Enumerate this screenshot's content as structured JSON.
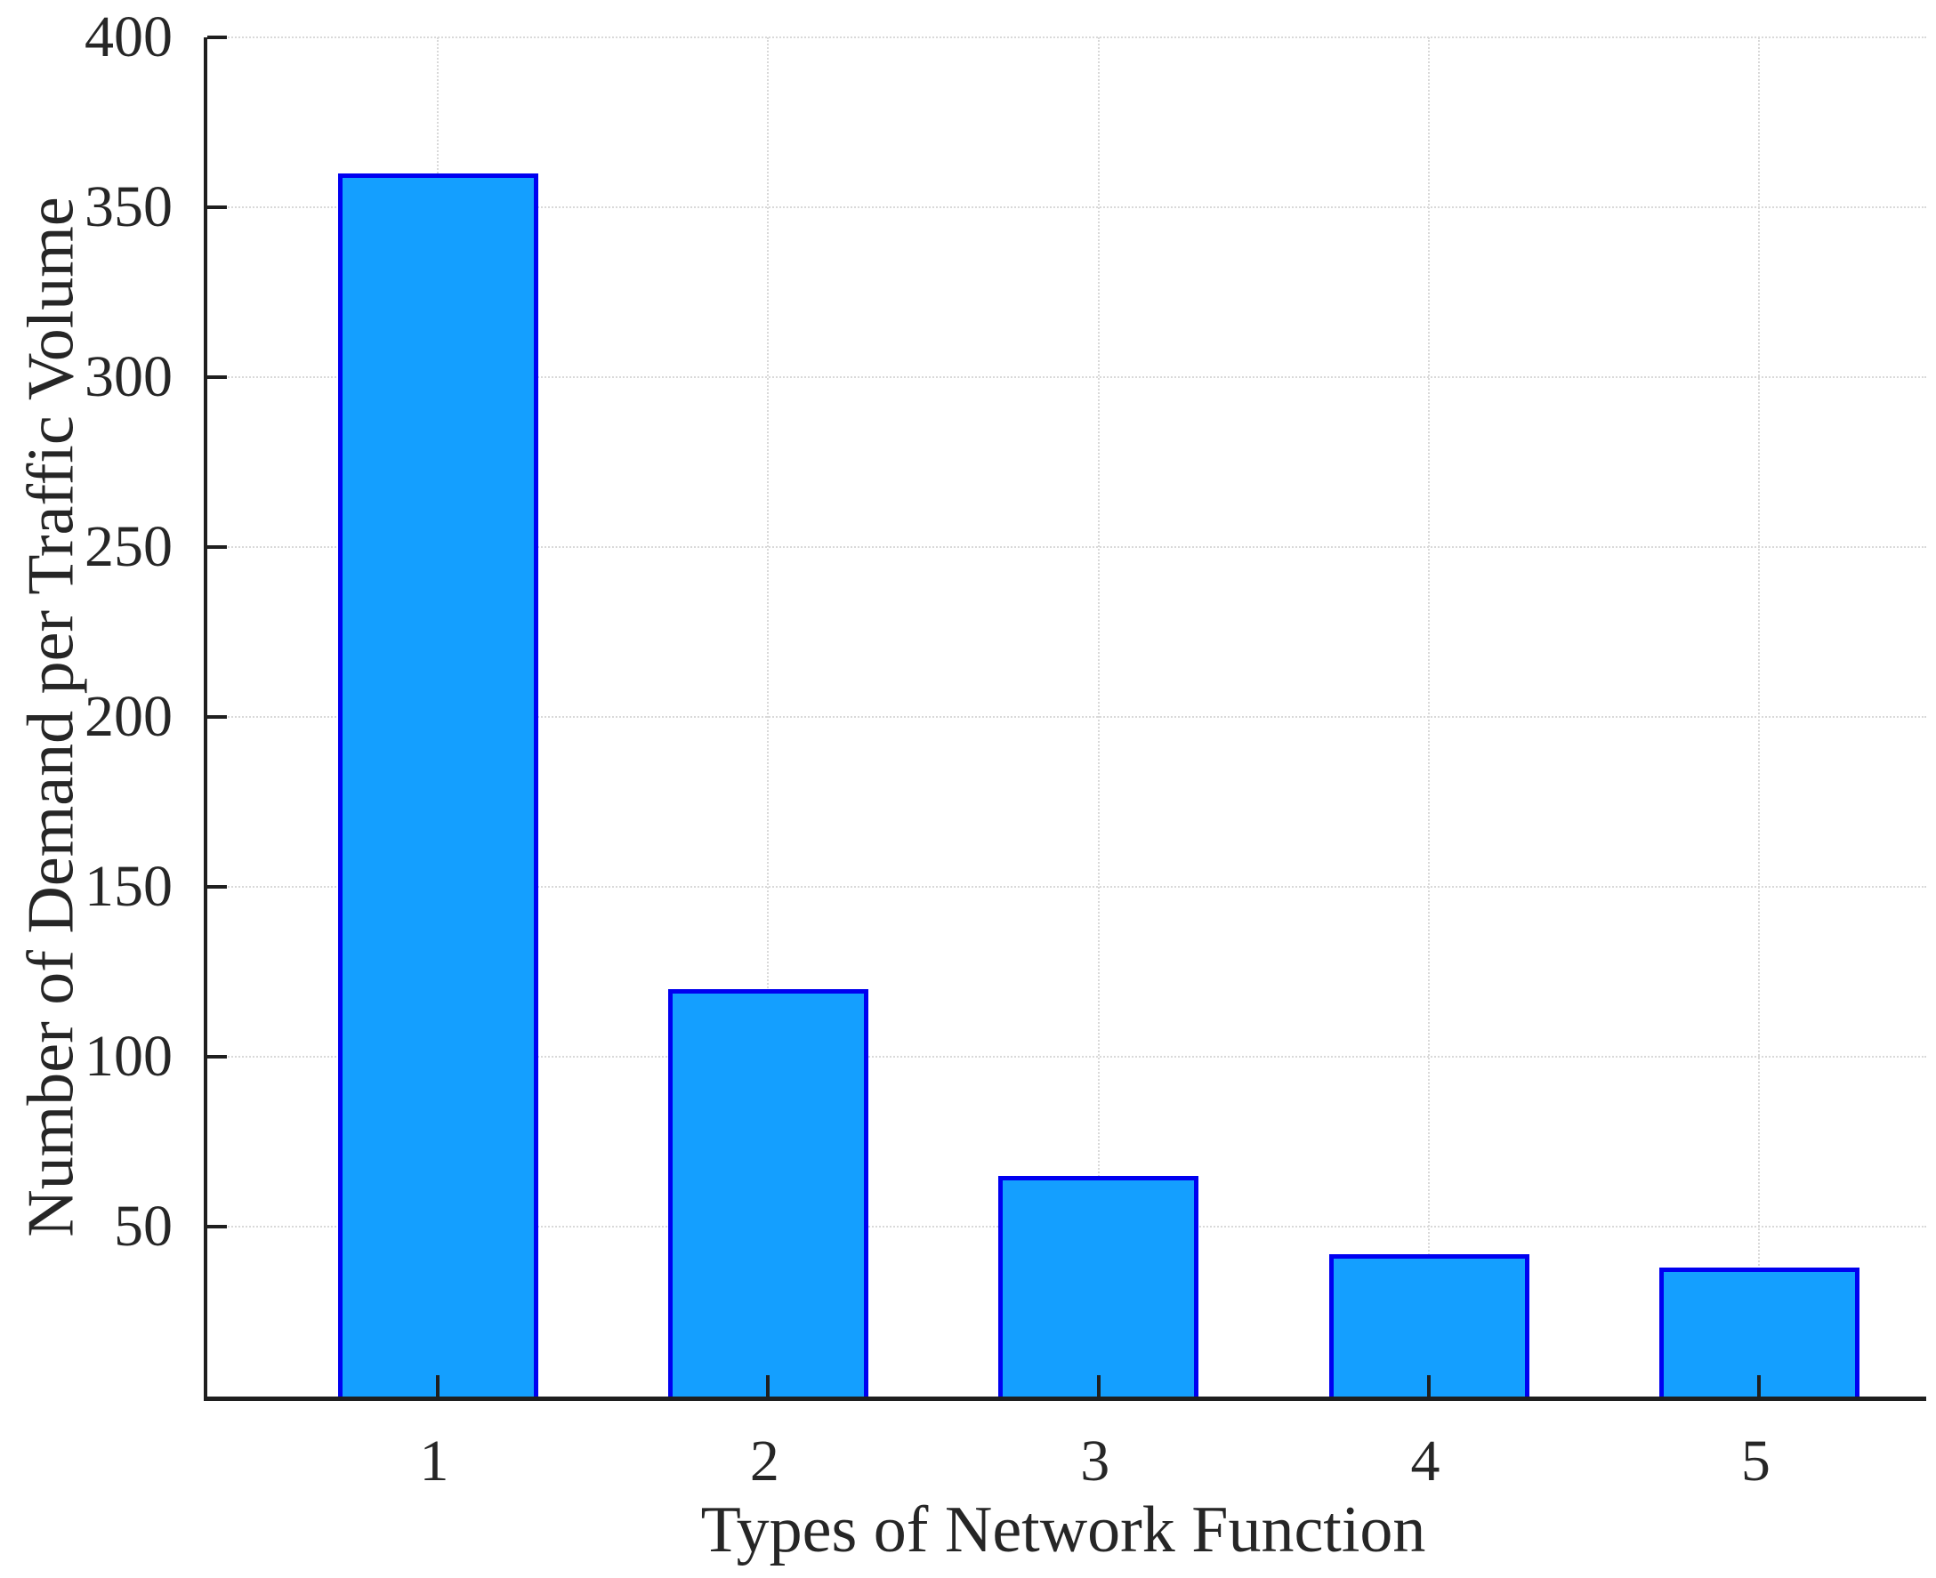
{
  "figure": {
    "background": "#ffffff",
    "text_color": "#262626",
    "axis_color": "#1f1f1f",
    "grid_color": "#d9d9d9"
  },
  "chart_data": {
    "type": "bar",
    "title": "",
    "xlabel": "Types of Network Function",
    "ylabel": "Number of Demand per Traffic Volume",
    "categories": [
      "1",
      "2",
      "3",
      "4",
      "5"
    ],
    "values": [
      360,
      120,
      65,
      42,
      38
    ],
    "ylim": [
      0,
      400
    ],
    "yticks": [
      50,
      100,
      150,
      200,
      250,
      300,
      350,
      400
    ],
    "grid": "on",
    "legend": "none",
    "bar_fill_color": "#149FFF",
    "bar_edge_color": "#0000F0"
  }
}
